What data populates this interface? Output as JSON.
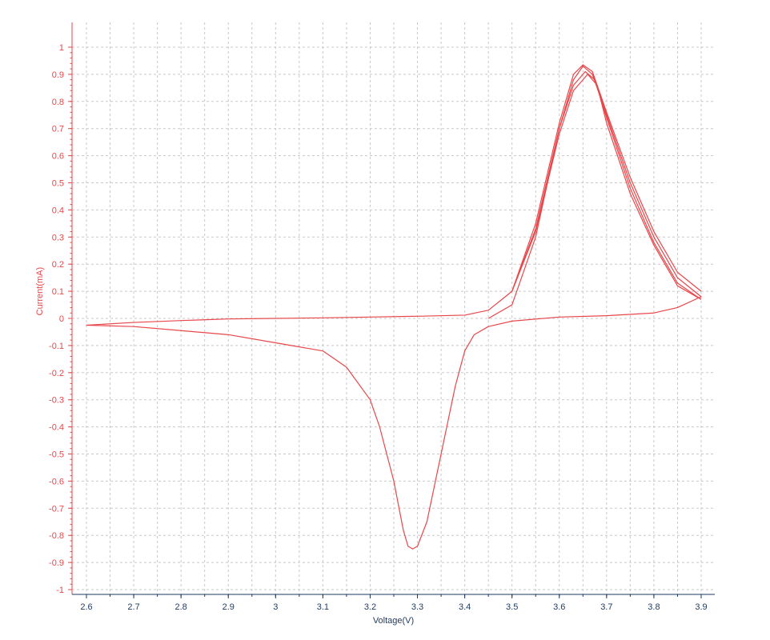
{
  "chart_data": {
    "type": "line",
    "title": "",
    "xlabel": "Voltage(V)",
    "ylabel": "Current(mA)",
    "xlim": [
      2.6,
      3.9
    ],
    "ylim": [
      -1,
      1
    ],
    "x_ticks": [
      "2.6",
      "2.7",
      "2.8",
      "2.9",
      "3",
      "3.1",
      "3.2",
      "3.3",
      "3.4",
      "3.5",
      "3.6",
      "3.7",
      "3.8",
      "3.9"
    ],
    "y_ticks": [
      "1",
      "0.9",
      "0.8",
      "0.7",
      "0.6",
      "0.5",
      "0.4",
      "0.3",
      "0.2",
      "0.1",
      "0",
      "-0.1",
      "-0.2",
      "-0.3",
      "-0.4",
      "-0.5",
      "-0.6",
      "-0.7",
      "-0.8",
      "-0.9",
      "-1"
    ],
    "grid": true,
    "legend": "none",
    "colors": {
      "series": "#e8464a",
      "y_axis": "#e8464a",
      "x_axis": "#1e3a5f",
      "grid": "#c8c8c8"
    },
    "series": [
      {
        "x": [
          3.45,
          3.5,
          3.55,
          3.6,
          3.63,
          3.65,
          3.67,
          3.7,
          3.75,
          3.8,
          3.85,
          3.9,
          3.85,
          3.8,
          3.7,
          3.6,
          3.5,
          3.45,
          3.42,
          3.4,
          3.38,
          3.35,
          3.32,
          3.3,
          3.29,
          3.28,
          3.27,
          3.25,
          3.22,
          3.2,
          3.15,
          3.1,
          3.0,
          2.9,
          2.8,
          2.7,
          2.6,
          2.7,
          2.8,
          2.9,
          3.0,
          3.1,
          3.2,
          3.3,
          3.4,
          3.45,
          3.5,
          3.55,
          3.6,
          3.63,
          3.65,
          3.67,
          3.7,
          3.75,
          3.8,
          3.85,
          3.9
        ],
        "y": [
          0.0,
          0.05,
          0.3,
          0.7,
          0.88,
          0.93,
          0.9,
          0.75,
          0.5,
          0.3,
          0.15,
          0.08,
          0.04,
          0.02,
          0.01,
          0.005,
          -0.01,
          -0.03,
          -0.06,
          -0.12,
          -0.25,
          -0.5,
          -0.75,
          -0.84,
          -0.85,
          -0.84,
          -0.78,
          -0.6,
          -0.4,
          -0.3,
          -0.18,
          -0.12,
          -0.09,
          -0.06,
          -0.045,
          -0.03,
          -0.025,
          -0.015,
          -0.008,
          -0.002,
          0.0,
          0.002,
          0.005,
          0.008,
          0.012,
          0.03,
          0.1,
          0.35,
          0.72,
          0.9,
          0.935,
          0.91,
          0.76,
          0.52,
          0.32,
          0.17,
          0.1
        ]
      },
      {
        "x": [
          3.5,
          3.55,
          3.6,
          3.63,
          3.655,
          3.675,
          3.7,
          3.75,
          3.8,
          3.85,
          3.9
        ],
        "y": [
          0.1,
          0.33,
          0.7,
          0.86,
          0.91,
          0.88,
          0.74,
          0.48,
          0.28,
          0.13,
          0.07
        ]
      },
      {
        "x": [
          3.5,
          3.55,
          3.6,
          3.63,
          3.66,
          3.68,
          3.7,
          3.75,
          3.8,
          3.85,
          3.9
        ],
        "y": [
          0.1,
          0.32,
          0.68,
          0.84,
          0.9,
          0.86,
          0.72,
          0.46,
          0.27,
          0.12,
          0.07
        ]
      }
    ]
  }
}
